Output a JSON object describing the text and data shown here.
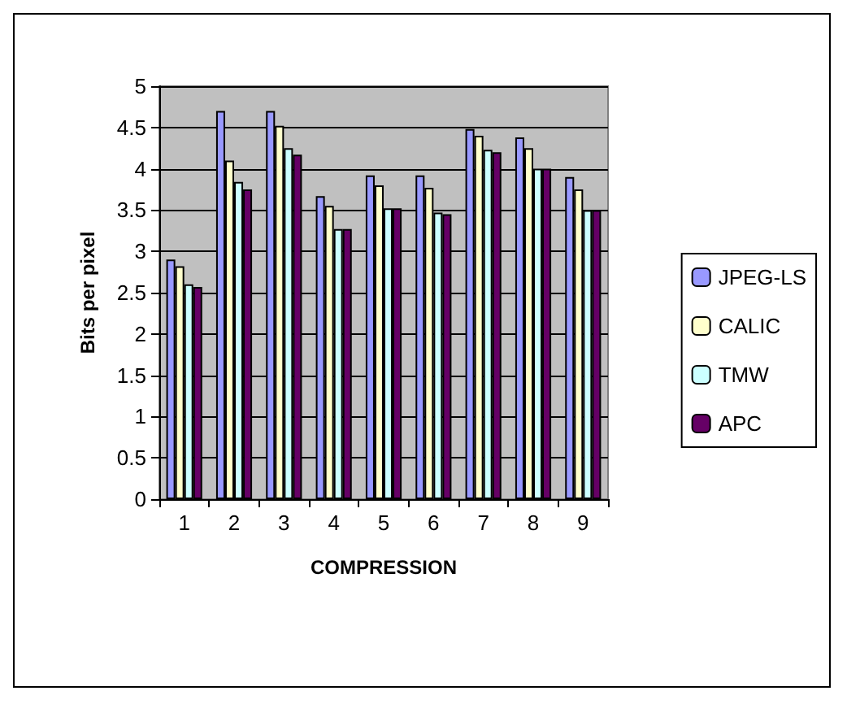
{
  "chart_data": {
    "type": "bar",
    "xlabel": "COMPRESSION",
    "ylabel": "Bits per pixel",
    "categories": [
      "1",
      "2",
      "3",
      "4",
      "5",
      "6",
      "7",
      "8",
      "9"
    ],
    "series": [
      {
        "name": "JPEG-LS",
        "color": "#9999ff",
        "values": [
          2.9,
          4.7,
          4.7,
          3.67,
          3.92,
          3.92,
          4.48,
          4.38,
          3.9
        ]
      },
      {
        "name": "CALIC",
        "color": "#ffffcc",
        "values": [
          2.82,
          4.1,
          4.52,
          3.55,
          3.8,
          3.77,
          4.4,
          4.25,
          3.75
        ]
      },
      {
        "name": "TMW",
        "color": "#ccffff",
        "values": [
          2.6,
          3.84,
          4.25,
          3.27,
          3.52,
          3.47,
          4.23,
          4.0,
          3.5
        ]
      },
      {
        "name": "APC",
        "color": "#660066",
        "values": [
          2.57,
          3.75,
          4.17,
          3.27,
          3.52,
          3.45,
          4.2,
          4.0,
          3.5
        ]
      }
    ],
    "ylim": [
      0,
      5
    ],
    "yticks": [
      0,
      0.5,
      1,
      1.5,
      2,
      2.5,
      3,
      3.5,
      4,
      4.5,
      5
    ],
    "grid": "y",
    "legend": "right"
  }
}
